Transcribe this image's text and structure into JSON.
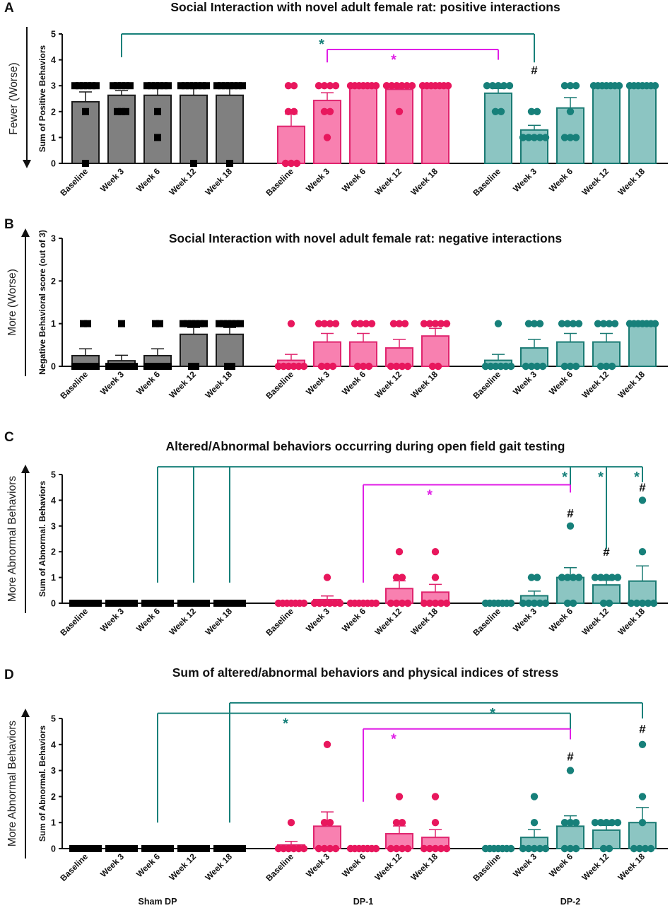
{
  "colors": {
    "sham": {
      "fill": "#808080",
      "stroke": "#1a1a1a",
      "point": "#000000"
    },
    "dp1": {
      "fill": "#f880b0",
      "stroke": "#e0246e",
      "point": "#e8175d"
    },
    "dp2": {
      "fill": "#8cc5c2",
      "stroke": "#197a73",
      "point": "#17807a"
    },
    "sig_dp1": "#e01ee6",
    "sig_dp2": "#17807a"
  },
  "group_labels": [
    "Sham DP",
    "DP-1",
    "DP-2"
  ],
  "chart_data": [
    {
      "id": "A",
      "type": "bar",
      "title": "Social Interaction with novel adult female rat: positive interactions",
      "side_label": "Fewer (Worse)",
      "ylabel": "Sum of Positive Behaviors",
      "arrow": "down",
      "ylim": [
        0,
        5
      ],
      "yticks": [
        0,
        1,
        2,
        3,
        4,
        5
      ],
      "categories": [
        "Baseline",
        "Week 3",
        "Week 6",
        "Week 12",
        "Week 18"
      ],
      "series": [
        {
          "name": "Sham DP",
          "values": [
            2.38,
            2.63,
            2.63,
            2.63,
            2.63
          ],
          "errors": [
            0.38,
            0.18,
            0.26,
            0.26,
            0.26
          ],
          "points": [
            [
              3,
              3,
              3,
              3,
              3,
              3,
              2,
              0
            ],
            [
              3,
              3,
              3,
              3,
              3,
              2,
              2,
              2
            ],
            [
              3,
              3,
              3,
              3,
              3,
              3,
              2,
              1
            ],
            [
              3,
              3,
              3,
              3,
              3,
              3,
              3,
              0
            ],
            [
              3,
              3,
              3,
              3,
              3,
              3,
              3,
              0
            ]
          ]
        },
        {
          "name": "DP-1",
          "values": [
            1.43,
            2.43,
            3.0,
            2.86,
            3.0
          ],
          "errors": [
            0.48,
            0.3,
            0.0,
            0.14,
            0.0
          ],
          "points": [
            [
              3,
              3,
              2,
              2,
              0,
              0,
              0
            ],
            [
              3,
              3,
              3,
              3,
              2,
              2,
              1
            ],
            [
              3,
              3,
              3,
              3,
              3,
              3,
              3
            ],
            [
              3,
              3,
              3,
              3,
              3,
              3,
              2
            ],
            [
              3,
              3,
              3,
              3,
              3,
              3,
              3
            ]
          ]
        },
        {
          "name": "DP-2",
          "values": [
            2.71,
            1.29,
            2.14,
            3.0,
            3.0
          ],
          "errors": [
            0.18,
            0.18,
            0.4,
            0.0,
            0.0
          ],
          "points": [
            [
              3,
              3,
              3,
              3,
              3,
              2,
              2
            ],
            [
              2,
              2,
              1,
              1,
              1,
              1,
              1
            ],
            [
              3,
              3,
              3,
              2,
              1,
              1,
              1
            ],
            [
              3,
              3,
              3,
              3,
              3,
              3,
              3
            ],
            [
              3,
              3,
              3,
              3,
              3,
              3,
              3
            ]
          ]
        }
      ],
      "hashes": [
        {
          "series": 2,
          "index": 1,
          "y": 3.6
        }
      ],
      "brackets": [
        {
          "from": [
            0,
            1
          ],
          "to": [
            2,
            1
          ],
          "y": 5.0,
          "left_drop": 4.1,
          "right_drop": 3.9,
          "star_at": [
            1,
            1
          ],
          "color": "dp2"
        },
        {
          "from": [
            1,
            1
          ],
          "to": [
            2,
            0
          ],
          "y": 4.4,
          "left_drop": 3.9,
          "right_drop": 4.0,
          "star_at": [
            1,
            3
          ],
          "color": "dp1"
        }
      ],
      "show_group_labels": false
    },
    {
      "id": "B",
      "type": "bar",
      "title": "Social Interaction with novel adult female rat: negative interactions",
      "side_label": "More (Worse)",
      "ylabel": "Negative Behavioral score (out of 3)",
      "arrow": "up",
      "ylim": [
        0,
        3
      ],
      "yticks": [
        0,
        1,
        2,
        3
      ],
      "categories": [
        "Baseline",
        "Week 3",
        "Week 6",
        "Week 12",
        "Week 18"
      ],
      "series": [
        {
          "name": "Sham DP",
          "values": [
            0.25,
            0.13,
            0.25,
            0.75,
            0.75
          ],
          "errors": [
            0.16,
            0.13,
            0.16,
            0.16,
            0.16
          ],
          "points": [
            [
              1,
              1,
              0,
              0,
              0,
              0,
              0,
              0
            ],
            [
              1,
              0,
              0,
              0,
              0,
              0,
              0,
              0
            ],
            [
              1,
              1,
              0,
              0,
              0,
              0,
              0,
              0
            ],
            [
              1,
              1,
              1,
              1,
              1,
              1,
              0,
              0
            ],
            [
              1,
              1,
              1,
              1,
              1,
              1,
              0,
              0
            ]
          ]
        },
        {
          "name": "DP-1",
          "values": [
            0.14,
            0.57,
            0.57,
            0.43,
            0.71
          ],
          "errors": [
            0.14,
            0.2,
            0.2,
            0.2,
            0.18
          ],
          "points": [
            [
              1,
              0,
              0,
              0,
              0,
              0,
              0
            ],
            [
              1,
              1,
              1,
              1,
              0,
              0,
              0
            ],
            [
              1,
              1,
              1,
              1,
              0,
              0,
              0
            ],
            [
              1,
              1,
              1,
              0,
              0,
              0,
              0
            ],
            [
              1,
              1,
              1,
              1,
              1,
              0,
              0
            ]
          ]
        },
        {
          "name": "DP-2",
          "values": [
            0.14,
            0.43,
            0.57,
            0.57,
            1.0
          ],
          "errors": [
            0.14,
            0.2,
            0.2,
            0.2,
            0.0
          ],
          "points": [
            [
              1,
              0,
              0,
              0,
              0,
              0,
              0
            ],
            [
              1,
              1,
              1,
              0,
              0,
              0,
              0
            ],
            [
              1,
              1,
              1,
              1,
              0,
              0,
              0
            ],
            [
              1,
              1,
              1,
              1,
              0,
              0,
              0
            ],
            [
              1,
              1,
              1,
              1,
              1,
              1,
              1
            ]
          ]
        }
      ],
      "hashes": [],
      "brackets": [],
      "show_group_labels": false
    },
    {
      "id": "C",
      "type": "bar",
      "title": "Altered/Abnormal behaviors occurring during open field gait testing",
      "side_label": "More Abnormal Behaviors",
      "ylabel": "Sum of Abnormal. Behaviors",
      "arrow": "up",
      "ylim": [
        0,
        5
      ],
      "yticks": [
        0,
        1,
        2,
        3,
        4,
        5
      ],
      "categories": [
        "Baseline",
        "Week 3",
        "Week 6",
        "Week 12",
        "Week 18"
      ],
      "series": [
        {
          "name": "Sham DP",
          "values": [
            0,
            0,
            0,
            0,
            0
          ],
          "errors": [
            0,
            0,
            0,
            0,
            0
          ],
          "points": [
            [
              0,
              0,
              0,
              0,
              0,
              0,
              0,
              0
            ],
            [
              0,
              0,
              0,
              0,
              0,
              0,
              0,
              0
            ],
            [
              0,
              0,
              0,
              0,
              0,
              0,
              0,
              0
            ],
            [
              0,
              0,
              0,
              0,
              0,
              0,
              0,
              0
            ],
            [
              0,
              0,
              0,
              0,
              0,
              0,
              0,
              0
            ]
          ]
        },
        {
          "name": "DP-1",
          "values": [
            0,
            0.14,
            0,
            0.57,
            0.43
          ],
          "errors": [
            0,
            0.14,
            0,
            0.3,
            0.3
          ],
          "points": [
            [
              0,
              0,
              0,
              0,
              0,
              0,
              0
            ],
            [
              1,
              0,
              0,
              0,
              0,
              0,
              0
            ],
            [
              0,
              0,
              0,
              0,
              0,
              0,
              0
            ],
            [
              2,
              1,
              1,
              0,
              0,
              0,
              0
            ],
            [
              2,
              1,
              0,
              0,
              0,
              0,
              0
            ]
          ]
        },
        {
          "name": "DP-2",
          "values": [
            0,
            0.29,
            1.0,
            0.71,
            0.86
          ],
          "errors": [
            0,
            0.18,
            0.38,
            0.18,
            0.59
          ],
          "points": [
            [
              0,
              0,
              0,
              0,
              0,
              0,
              0
            ],
            [
              1,
              1,
              0,
              0,
              0,
              0,
              0
            ],
            [
              3,
              1,
              1,
              1,
              1,
              0,
              0
            ],
            [
              1,
              1,
              1,
              1,
              1,
              0,
              0
            ],
            [
              4,
              2,
              0,
              0,
              0,
              0,
              0
            ]
          ]
        }
      ],
      "hashes": [
        {
          "series": 2,
          "index": 2,
          "y": 3.5
        },
        {
          "series": 2,
          "index": 3,
          "y": 2.0
        },
        {
          "series": 2,
          "index": 4,
          "y": 4.5
        }
      ],
      "brackets": [
        {
          "from": [
            0,
            2
          ],
          "to": [
            2,
            4
          ],
          "y": 5.3,
          "left_drop": 0.8,
          "right_drop": 4.7,
          "star_at": [
            2,
            4
          ],
          "color": "dp2",
          "extra_drops": [
            {
              "at": [
                0,
                3
              ],
              "to": 0.8
            },
            {
              "at": [
                0,
                4
              ],
              "to": 0.8
            },
            {
              "at": [
                2,
                2
              ],
              "to": 4.5
            },
            {
              "at": [
                2,
                3
              ],
              "to": 2.1
            }
          ],
          "extra_stars": [
            [
              2,
              2
            ],
            [
              2,
              3
            ]
          ]
        },
        {
          "from": [
            1,
            2
          ],
          "to": [
            2,
            2
          ],
          "y": 4.6,
          "left_drop": 0.8,
          "right_drop": 4.3,
          "star_at": [
            1,
            4
          ],
          "color": "dp1"
        }
      ],
      "show_group_labels": false
    },
    {
      "id": "D",
      "type": "bar",
      "title": "Sum of altered/abnormal behaviors and physical indices of stress",
      "side_label": "More Abnormal Behaviors",
      "ylabel": "Sum of Abnormal. Behaviors",
      "arrow": "up",
      "ylim": [
        0,
        5
      ],
      "yticks": [
        0,
        1,
        2,
        3,
        4,
        5
      ],
      "categories": [
        "Baseline",
        "Week 3",
        "Week 6",
        "Week 12",
        "Week 18"
      ],
      "series": [
        {
          "name": "Sham DP",
          "values": [
            0,
            0,
            0,
            0,
            0
          ],
          "errors": [
            0,
            0,
            0,
            0,
            0
          ],
          "points": [
            [
              0,
              0,
              0,
              0,
              0,
              0,
              0,
              0
            ],
            [
              0,
              0,
              0,
              0,
              0,
              0,
              0,
              0
            ],
            [
              0,
              0,
              0,
              0,
              0,
              0,
              0,
              0
            ],
            [
              0,
              0,
              0,
              0,
              0,
              0,
              0,
              0
            ],
            [
              0,
              0,
              0,
              0,
              0,
              0,
              0,
              0
            ]
          ]
        },
        {
          "name": "DP-1",
          "values": [
            0.14,
            0.86,
            0,
            0.57,
            0.43
          ],
          "errors": [
            0.14,
            0.55,
            0,
            0.3,
            0.3
          ],
          "points": [
            [
              1,
              0,
              0,
              0,
              0,
              0,
              0
            ],
            [
              4,
              1,
              1,
              0,
              0,
              0,
              0
            ],
            [
              0,
              0,
              0,
              0,
              0,
              0,
              0
            ],
            [
              2,
              1,
              1,
              0,
              0,
              0,
              0
            ],
            [
              2,
              1,
              0,
              0,
              0,
              0,
              0
            ]
          ]
        },
        {
          "name": "DP-2",
          "values": [
            0,
            0.43,
            0.86,
            0.71,
            1.0
          ],
          "errors": [
            0,
            0.3,
            0.4,
            0.18,
            0.58
          ],
          "points": [
            [
              0,
              0,
              0,
              0,
              0,
              0,
              0
            ],
            [
              2,
              1,
              0,
              0,
              0,
              0,
              0
            ],
            [
              3,
              1,
              1,
              1,
              0,
              0,
              0
            ],
            [
              1,
              1,
              1,
              1,
              1,
              0,
              0
            ],
            [
              4,
              2,
              1,
              0,
              0,
              0,
              0
            ]
          ]
        }
      ],
      "hashes": [
        {
          "series": 2,
          "index": 2,
          "y": 3.55
        },
        {
          "series": 2,
          "index": 4,
          "y": 4.6
        }
      ],
      "brackets": [
        {
          "from": [
            0,
            4
          ],
          "to": [
            2,
            4
          ],
          "y": 5.6,
          "left_drop": 1.0,
          "right_drop": 5.0,
          "star_at": [
            2,
            0
          ],
          "color": "dp2"
        },
        {
          "from": [
            0,
            2
          ],
          "to": [
            2,
            2
          ],
          "y": 5.2,
          "left_drop": 1.0,
          "right_drop": 4.2,
          "star_at": [
            1,
            0
          ],
          "color": "dp2"
        },
        {
          "from": [
            1,
            2
          ],
          "to": [
            2,
            2
          ],
          "y": 4.6,
          "left_drop": 1.8,
          "right_drop": 4.2,
          "star_at": [
            1,
            3
          ],
          "color": "dp1"
        }
      ],
      "show_group_labels": true
    }
  ],
  "star_symbol": "*",
  "hash_symbol": "#"
}
